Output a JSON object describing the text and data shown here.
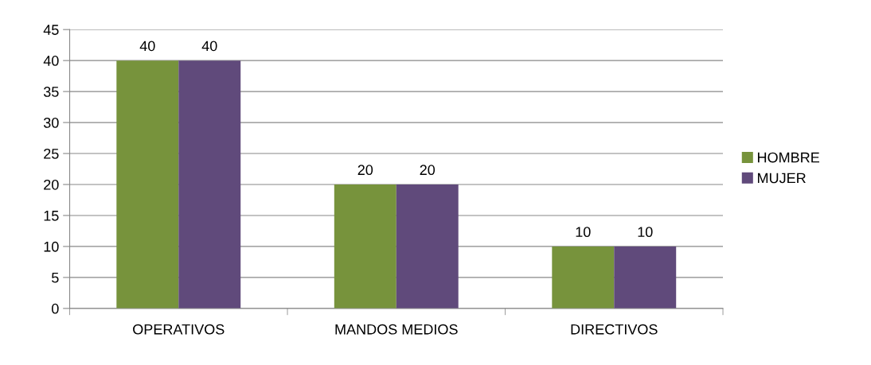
{
  "chart_data": {
    "type": "bar",
    "categories": [
      "OPERATIVOS",
      "MANDOS MEDIOS",
      "DIRECTIVOS"
    ],
    "series": [
      {
        "name": "HOMBRE",
        "color": "#77933c",
        "values": [
          40,
          20,
          10
        ]
      },
      {
        "name": "MUJER",
        "color": "#604a7b",
        "values": [
          40,
          20,
          10
        ]
      }
    ],
    "ylim": [
      0,
      45
    ],
    "yticks": [
      0,
      5,
      10,
      15,
      20,
      25,
      30,
      35,
      40,
      45
    ],
    "grid": "y",
    "legend": "right",
    "data_labels": true
  }
}
